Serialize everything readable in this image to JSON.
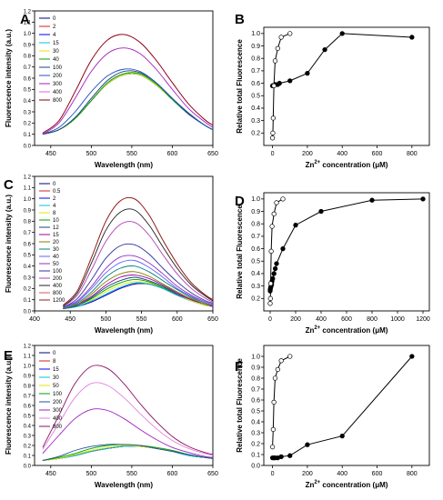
{
  "chart_data": [
    {
      "id": "A",
      "type": "line",
      "panel_label": "A",
      "xlabel": "Wavelength (nm)",
      "ylabel": "Fluorescence intensity (a.u.)",
      "xlim": [
        430,
        650
      ],
      "ylim": [
        0,
        1.2
      ],
      "xticks": [
        450,
        500,
        550,
        600,
        650
      ],
      "yticks": [
        0,
        0.1,
        0.2,
        0.3,
        0.4,
        0.5,
        0.6,
        0.7,
        0.8,
        0.9,
        1.0,
        1.1,
        1.2
      ],
      "legend_placement": "top-left",
      "x": [
        440,
        460,
        480,
        500,
        520,
        540,
        560,
        580,
        600,
        620,
        640,
        650
      ],
      "series": [
        {
          "name": "0",
          "color": "#000080",
          "values": [
            0.1,
            0.14,
            0.24,
            0.4,
            0.55,
            0.63,
            0.63,
            0.54,
            0.41,
            0.28,
            0.18,
            0.14
          ]
        },
        {
          "name": "2",
          "color": "#d02020",
          "values": [
            0.1,
            0.14,
            0.24,
            0.4,
            0.55,
            0.63,
            0.63,
            0.54,
            0.41,
            0.28,
            0.18,
            0.14
          ]
        },
        {
          "name": "4",
          "color": "#0000ff",
          "values": [
            0.1,
            0.14,
            0.24,
            0.4,
            0.55,
            0.63,
            0.63,
            0.54,
            0.41,
            0.28,
            0.18,
            0.14
          ]
        },
        {
          "name": "15",
          "color": "#00c8c8",
          "values": [
            0.1,
            0.14,
            0.24,
            0.4,
            0.55,
            0.63,
            0.63,
            0.54,
            0.41,
            0.28,
            0.18,
            0.14
          ]
        },
        {
          "name": "30",
          "color": "#e6e600",
          "values": [
            0.1,
            0.14,
            0.24,
            0.4,
            0.55,
            0.63,
            0.63,
            0.54,
            0.41,
            0.28,
            0.18,
            0.14
          ]
        },
        {
          "name": "40",
          "color": "#00a000",
          "values": [
            0.1,
            0.14,
            0.24,
            0.4,
            0.56,
            0.64,
            0.64,
            0.55,
            0.41,
            0.28,
            0.18,
            0.14
          ]
        },
        {
          "name": "100",
          "color": "#204080",
          "values": [
            0.1,
            0.14,
            0.25,
            0.42,
            0.58,
            0.66,
            0.65,
            0.56,
            0.42,
            0.29,
            0.18,
            0.14
          ]
        },
        {
          "name": "200",
          "color": "#2050c0",
          "values": [
            0.1,
            0.16,
            0.3,
            0.48,
            0.62,
            0.68,
            0.66,
            0.56,
            0.42,
            0.28,
            0.18,
            0.14
          ]
        },
        {
          "name": "300",
          "color": "#a020c0",
          "values": [
            0.1,
            0.2,
            0.42,
            0.66,
            0.82,
            0.87,
            0.82,
            0.68,
            0.5,
            0.33,
            0.21,
            0.16
          ]
        },
        {
          "name": "400",
          "color": "#e060e0",
          "values": [
            0.11,
            0.22,
            0.48,
            0.76,
            0.94,
            0.99,
            0.92,
            0.76,
            0.56,
            0.37,
            0.23,
            0.18
          ]
        },
        {
          "name": "800",
          "color": "#8b0000",
          "values": [
            0.11,
            0.22,
            0.48,
            0.76,
            0.94,
            0.99,
            0.92,
            0.76,
            0.56,
            0.37,
            0.23,
            0.18
          ]
        }
      ]
    },
    {
      "id": "B",
      "type": "line",
      "panel_label": "B",
      "xlabel": "Zn2+ concentration (μM)",
      "ylabel": "Relative total Fluorescence",
      "xlim": [
        -50,
        900
      ],
      "ylim": [
        0.1,
        1.05
      ],
      "xticks": [
        0,
        200,
        400,
        600,
        800
      ],
      "yticks": [
        0.2,
        0.3,
        0.4,
        0.5,
        0.6,
        0.7,
        0.8,
        0.9,
        1.0
      ],
      "series": [
        {
          "name": "filled",
          "marker": "filled",
          "x": [
            0,
            2,
            4,
            15,
            30,
            40,
            100,
            200,
            300,
            400,
            800
          ],
          "values": [
            0.58,
            0.58,
            0.58,
            0.59,
            0.59,
            0.6,
            0.62,
            0.68,
            0.87,
            1.0,
            0.97
          ]
        },
        {
          "name": "open",
          "marker": "open",
          "x": [
            0,
            2,
            4,
            8,
            15,
            30,
            50,
            100
          ],
          "values": [
            0.16,
            0.2,
            0.32,
            0.58,
            0.78,
            0.88,
            0.97,
            1.0
          ]
        }
      ]
    },
    {
      "id": "C",
      "type": "line",
      "panel_label": "C",
      "xlabel": "Wavelength (nm)",
      "ylabel": "Fluorescence intensity (a.u.)",
      "xlim": [
        400,
        650
      ],
      "ylim": [
        0,
        1.2
      ],
      "xticks": [
        400,
        450,
        500,
        550,
        600,
        650
      ],
      "yticks": [
        0,
        0.1,
        0.2,
        0.3,
        0.4,
        0.5,
        0.6,
        0.7,
        0.8,
        0.9,
        1.0,
        1.1,
        1.2
      ],
      "legend_placement": "top-left",
      "x": [
        440,
        460,
        480,
        500,
        520,
        540,
        560,
        580,
        600,
        620,
        640,
        650
      ],
      "series": [
        {
          "name": "0",
          "color": "#000080",
          "values": [
            0.02,
            0.04,
            0.08,
            0.14,
            0.2,
            0.24,
            0.24,
            0.2,
            0.14,
            0.09,
            0.05,
            0.04
          ]
        },
        {
          "name": "0.5",
          "color": "#d02020",
          "values": [
            0.02,
            0.04,
            0.08,
            0.14,
            0.2,
            0.24,
            0.24,
            0.2,
            0.14,
            0.09,
            0.05,
            0.04
          ]
        },
        {
          "name": "2",
          "color": "#0000ff",
          "values": [
            0.02,
            0.04,
            0.08,
            0.14,
            0.2,
            0.24,
            0.24,
            0.2,
            0.14,
            0.09,
            0.05,
            0.04
          ]
        },
        {
          "name": "4",
          "color": "#00c8c8",
          "values": [
            0.02,
            0.04,
            0.09,
            0.15,
            0.21,
            0.25,
            0.24,
            0.2,
            0.14,
            0.09,
            0.05,
            0.04
          ]
        },
        {
          "name": "8",
          "color": "#e6e600",
          "values": [
            0.02,
            0.05,
            0.1,
            0.17,
            0.23,
            0.26,
            0.25,
            0.21,
            0.15,
            0.09,
            0.05,
            0.04
          ]
        },
        {
          "name": "10",
          "color": "#00a000",
          "values": [
            0.02,
            0.05,
            0.11,
            0.19,
            0.25,
            0.28,
            0.26,
            0.21,
            0.15,
            0.1,
            0.06,
            0.04
          ]
        },
        {
          "name": "12",
          "color": "#204080",
          "values": [
            0.02,
            0.05,
            0.12,
            0.21,
            0.27,
            0.3,
            0.27,
            0.22,
            0.15,
            0.1,
            0.06,
            0.04
          ]
        },
        {
          "name": "15",
          "color": "#a000a0",
          "values": [
            0.02,
            0.06,
            0.13,
            0.23,
            0.3,
            0.32,
            0.29,
            0.23,
            0.16,
            0.1,
            0.06,
            0.04
          ]
        },
        {
          "name": "20",
          "color": "#808000",
          "values": [
            0.02,
            0.06,
            0.15,
            0.26,
            0.33,
            0.35,
            0.31,
            0.24,
            0.17,
            0.11,
            0.06,
            0.05
          ]
        },
        {
          "name": "30",
          "color": "#008080",
          "values": [
            0.02,
            0.07,
            0.17,
            0.3,
            0.38,
            0.4,
            0.35,
            0.27,
            0.19,
            0.12,
            0.07,
            0.05
          ]
        },
        {
          "name": "40",
          "color": "#6060ff",
          "values": [
            0.03,
            0.08,
            0.2,
            0.34,
            0.43,
            0.45,
            0.39,
            0.3,
            0.2,
            0.13,
            0.07,
            0.05
          ]
        },
        {
          "name": "50",
          "color": "#9030c0",
          "values": [
            0.03,
            0.09,
            0.22,
            0.38,
            0.48,
            0.49,
            0.43,
            0.33,
            0.22,
            0.14,
            0.08,
            0.06
          ]
        },
        {
          "name": "100",
          "color": "#3030a0",
          "values": [
            0.03,
            0.11,
            0.28,
            0.47,
            0.58,
            0.59,
            0.51,
            0.38,
            0.26,
            0.16,
            0.09,
            0.07
          ]
        },
        {
          "name": "200",
          "color": "#b040b0",
          "values": [
            0.04,
            0.14,
            0.37,
            0.62,
            0.77,
            0.79,
            0.68,
            0.5,
            0.33,
            0.2,
            0.11,
            0.08
          ]
        },
        {
          "name": "400",
          "color": "#202020",
          "values": [
            0.04,
            0.16,
            0.43,
            0.72,
            0.88,
            0.9,
            0.77,
            0.57,
            0.38,
            0.23,
            0.13,
            0.09
          ]
        },
        {
          "name": "800",
          "color": "#e05050",
          "values": [
            0.05,
            0.18,
            0.48,
            0.8,
            0.98,
            1.0,
            0.86,
            0.63,
            0.42,
            0.25,
            0.14,
            0.1
          ]
        },
        {
          "name": "1200",
          "color": "#8b2020",
          "values": [
            0.05,
            0.18,
            0.48,
            0.8,
            0.98,
            1.0,
            0.86,
            0.63,
            0.42,
            0.25,
            0.14,
            0.1
          ]
        }
      ]
    },
    {
      "id": "D",
      "type": "line",
      "panel_label": "D",
      "xlabel": "Zn2+ concentration (μM)",
      "ylabel": "Relative total Fluorescence",
      "xlim": [
        -50,
        1250
      ],
      "ylim": [
        0.1,
        1.05
      ],
      "xticks": [
        0,
        200,
        400,
        600,
        800,
        1000,
        1200
      ],
      "yticks": [
        0.2,
        0.3,
        0.4,
        0.5,
        0.6,
        0.7,
        0.8,
        0.9,
        1.0
      ],
      "series": [
        {
          "name": "filled",
          "marker": "filled",
          "x": [
            0,
            0.5,
            2,
            4,
            8,
            10,
            12,
            15,
            20,
            30,
            40,
            50,
            100,
            200,
            400,
            800,
            1200
          ],
          "values": [
            0.26,
            0.27,
            0.28,
            0.29,
            0.3,
            0.31,
            0.32,
            0.34,
            0.36,
            0.4,
            0.44,
            0.48,
            0.6,
            0.79,
            0.9,
            0.99,
            1.0
          ]
        },
        {
          "name": "open",
          "marker": "open",
          "x": [
            0,
            2,
            4,
            8,
            15,
            30,
            50,
            100
          ],
          "values": [
            0.16,
            0.2,
            0.32,
            0.58,
            0.78,
            0.88,
            0.97,
            1.0
          ]
        }
      ]
    },
    {
      "id": "E",
      "type": "line",
      "panel_label": "E",
      "xlabel": "Wavelength (nm)",
      "ylabel": "Fluorescence intensity (a.u.)",
      "xlim": [
        430,
        650
      ],
      "ylim": [
        0,
        1.2
      ],
      "xticks": [
        450,
        500,
        550,
        600,
        650
      ],
      "yticks": [
        0,
        0.1,
        0.2,
        0.3,
        0.4,
        0.5,
        0.6,
        0.7,
        0.8,
        0.9,
        1.0,
        1.1,
        1.2
      ],
      "legend_placement": "top-left",
      "x": [
        440,
        460,
        480,
        500,
        520,
        540,
        560,
        580,
        600,
        620,
        640,
        650
      ],
      "series": [
        {
          "name": "0",
          "color": "#000080",
          "values": [
            0.05,
            0.07,
            0.1,
            0.14,
            0.17,
            0.19,
            0.19,
            0.17,
            0.14,
            0.1,
            0.08,
            0.07
          ]
        },
        {
          "name": "8",
          "color": "#d02020",
          "values": [
            0.05,
            0.07,
            0.1,
            0.14,
            0.17,
            0.19,
            0.19,
            0.17,
            0.14,
            0.1,
            0.08,
            0.07
          ]
        },
        {
          "name": "15",
          "color": "#0000ff",
          "values": [
            0.05,
            0.07,
            0.1,
            0.14,
            0.17,
            0.19,
            0.19,
            0.17,
            0.14,
            0.1,
            0.08,
            0.07
          ]
        },
        {
          "name": "30",
          "color": "#00c8c8",
          "values": [
            0.05,
            0.07,
            0.1,
            0.14,
            0.17,
            0.19,
            0.19,
            0.17,
            0.14,
            0.1,
            0.08,
            0.07
          ]
        },
        {
          "name": "50",
          "color": "#e6e600",
          "values": [
            0.05,
            0.07,
            0.11,
            0.15,
            0.18,
            0.2,
            0.19,
            0.17,
            0.14,
            0.11,
            0.08,
            0.07
          ]
        },
        {
          "name": "100",
          "color": "#00a000",
          "values": [
            0.05,
            0.08,
            0.12,
            0.17,
            0.2,
            0.21,
            0.2,
            0.18,
            0.15,
            0.11,
            0.08,
            0.07
          ]
        },
        {
          "name": "200",
          "color": "#2050a0",
          "values": [
            0.05,
            0.09,
            0.15,
            0.19,
            0.21,
            0.21,
            0.2,
            0.17,
            0.14,
            0.11,
            0.08,
            0.07
          ]
        },
        {
          "name": "300",
          "color": "#a020c0",
          "values": [
            0.12,
            0.3,
            0.47,
            0.56,
            0.55,
            0.47,
            0.36,
            0.26,
            0.18,
            0.13,
            0.09,
            0.08
          ]
        },
        {
          "name": "400",
          "color": "#e080e0",
          "values": [
            0.16,
            0.42,
            0.68,
            0.82,
            0.8,
            0.68,
            0.52,
            0.37,
            0.25,
            0.17,
            0.12,
            0.1
          ]
        },
        {
          "name": "800",
          "color": "#8b1060",
          "values": [
            0.18,
            0.5,
            0.82,
            0.99,
            0.97,
            0.82,
            0.62,
            0.44,
            0.29,
            0.19,
            0.13,
            0.11
          ]
        }
      ]
    },
    {
      "id": "F",
      "type": "line",
      "panel_label": "F",
      "xlabel": "Zn2+ concentration (μM)",
      "ylabel": "Relative total Fluorescence",
      "xlim": [
        -50,
        900
      ],
      "ylim": [
        0.0,
        1.1
      ],
      "xticks": [
        0,
        200,
        400,
        600,
        800
      ],
      "yticks": [
        0.0,
        0.1,
        0.2,
        0.3,
        0.4,
        0.5,
        0.6,
        0.7,
        0.8,
        0.9,
        1.0
      ],
      "series": [
        {
          "name": "filled",
          "marker": "filled",
          "x": [
            0,
            8,
            15,
            30,
            50,
            100,
            200,
            400,
            800
          ],
          "values": [
            0.07,
            0.07,
            0.07,
            0.07,
            0.08,
            0.09,
            0.19,
            0.27,
            1.0
          ]
        },
        {
          "name": "open",
          "marker": "open",
          "x": [
            0,
            4,
            8,
            15,
            30,
            50,
            100
          ],
          "values": [
            0.17,
            0.33,
            0.58,
            0.8,
            0.88,
            0.96,
            1.0
          ]
        }
      ]
    }
  ]
}
